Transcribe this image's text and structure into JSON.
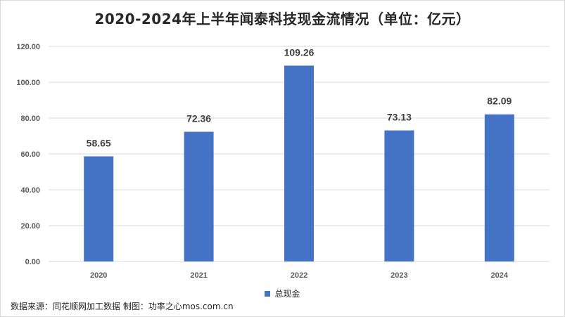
{
  "chart_data": {
    "type": "bar",
    "title": "2020-2024年上半年闻泰科技现金流情况（单位：亿元）",
    "categories": [
      "2020",
      "2021",
      "2022",
      "2023",
      "2024"
    ],
    "series": [
      {
        "name": "总现金",
        "values": [
          58.65,
          72.36,
          109.26,
          73.13,
          82.09
        ]
      }
    ],
    "data_labels": [
      "58.65",
      "72.36",
      "109.26",
      "73.13",
      "82.09"
    ],
    "ylim": [
      0,
      120
    ],
    "yticks": [
      0,
      20,
      40,
      60,
      80,
      100,
      120
    ],
    "ytick_labels": [
      "0.00",
      "20.00",
      "40.00",
      "60.00",
      "80.00",
      "100.00",
      "120.00"
    ],
    "grid": true,
    "legend_position": "bottom",
    "bar_color": "#4472c4",
    "grid_color": "#d9d9d9"
  },
  "footer": {
    "source": "数据来源：同花顺网加工数据 制图：功率之心mos.com.cn"
  }
}
